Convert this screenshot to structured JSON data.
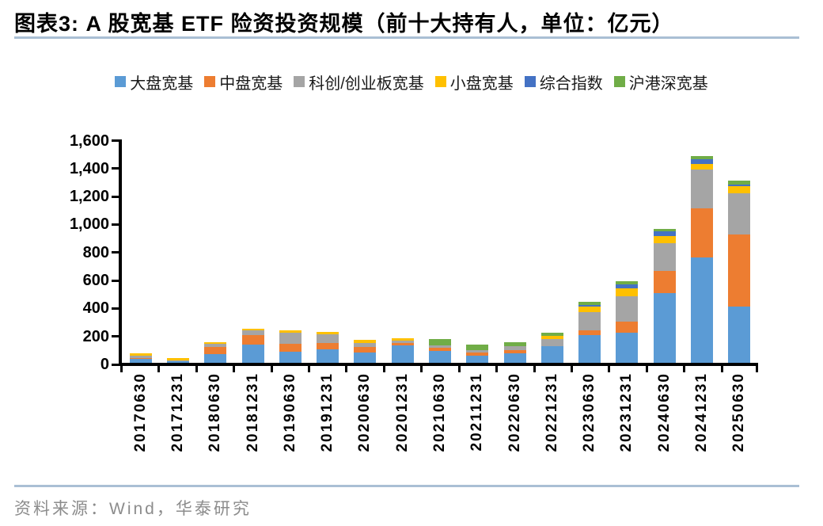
{
  "header": {
    "title": "图表3:  A 股宽基 ETF 险资投资规模（前十大持有人，单位：亿元）"
  },
  "footer": {
    "source": "资料来源：Wind，华泰研究"
  },
  "style": {
    "rule_color": "#AABFD4",
    "axis_color": "#000000",
    "source_text_color": "#8C8C8C"
  },
  "chart_data": {
    "type": "bar",
    "stacked": true,
    "title": "A股宽基ETF险资投资规模（前十大持有人，单位：亿元）",
    "unit": "亿元",
    "legend_position": "top",
    "grid": false,
    "ylim": [
      0,
      1600
    ],
    "ytick_step": 200,
    "ytick_labels": [
      "0",
      "200",
      "400",
      "600",
      "800",
      "1,000",
      "1,200",
      "1,400",
      "1,600"
    ],
    "categories": [
      "20170630",
      "20171231",
      "20180630",
      "20181231",
      "20190630",
      "20191231",
      "20200630",
      "20201231",
      "20210630",
      "20211231",
      "20220630",
      "20221231",
      "20230630",
      "20231231",
      "20240630",
      "20241231",
      "20250630"
    ],
    "series": [
      {
        "name": "大盘宽基",
        "color": "#5B9BD5",
        "values": [
          30,
          10,
          63,
          128,
          81,
          98,
          76,
          122,
          85,
          50,
          70,
          120,
          200,
          215,
          500,
          755,
          400
        ]
      },
      {
        "name": "中盘宽基",
        "color": "#ED7D31",
        "values": [
          4,
          0,
          50,
          72,
          56,
          43,
          37,
          22,
          20,
          22,
          22,
          0,
          35,
          80,
          155,
          350,
          520
        ]
      },
      {
        "name": "科创/创业板宽基",
        "color": "#A5A5A5",
        "values": [
          18,
          6,
          24,
          33,
          81,
          65,
          31,
          15,
          20,
          18,
          25,
          52,
          130,
          180,
          200,
          275,
          290
        ]
      },
      {
        "name": "小盘宽基",
        "color": "#FFC000",
        "values": [
          16,
          19,
          11,
          13,
          15,
          13,
          18,
          18,
          0,
          0,
          0,
          20,
          35,
          60,
          50,
          40,
          55
        ]
      },
      {
        "name": "综合指数",
        "color": "#4472C4",
        "values": [
          0,
          0,
          0,
          0,
          0,
          0,
          0,
          0,
          0,
          0,
          0,
          0,
          15,
          25,
          35,
          35,
          10
        ]
      },
      {
        "name": "沪港深宽基",
        "color": "#70AD47",
        "values": [
          0,
          0,
          0,
          0,
          0,
          0,
          0,
          0,
          45,
          38,
          30,
          23,
          20,
          25,
          20,
          25,
          25
        ]
      }
    ]
  }
}
